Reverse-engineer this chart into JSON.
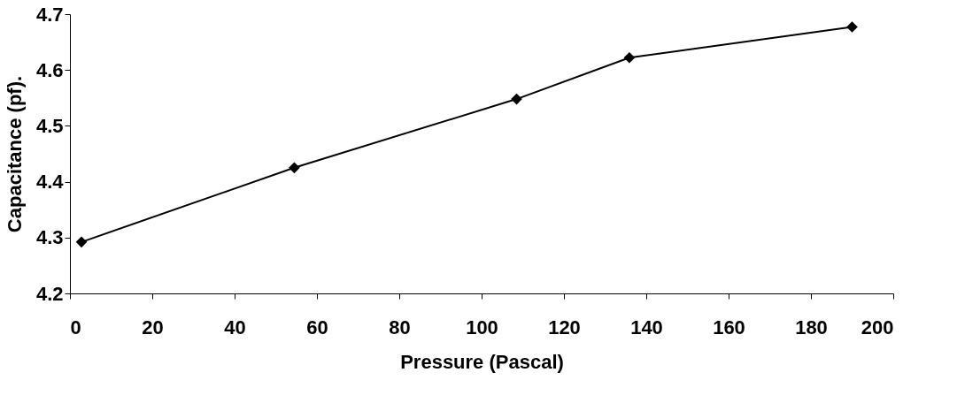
{
  "chart_data": {
    "type": "line",
    "xlabel": "Pressure (Pascal)",
    "ylabel": "Capacitance (pf).",
    "x": [
      2.8,
      54.5,
      108.5,
      135.9,
      190
    ],
    "series": [
      {
        "color": "#000000",
        "values": [
          4.292,
          4.425,
          4.548,
          4.622,
          4.677
        ]
      }
    ],
    "xlim": [
      0,
      200
    ],
    "xticks": [
      0,
      20,
      40,
      60,
      80,
      100,
      120,
      140,
      160,
      180,
      200
    ],
    "ylim": [
      4.2,
      4.7
    ],
    "yticks": [
      4.2,
      4.3,
      4.4,
      4.5,
      4.6,
      4.7
    ],
    "marker": "diamond",
    "line_style": "solid",
    "grid": false,
    "legend": false
  }
}
